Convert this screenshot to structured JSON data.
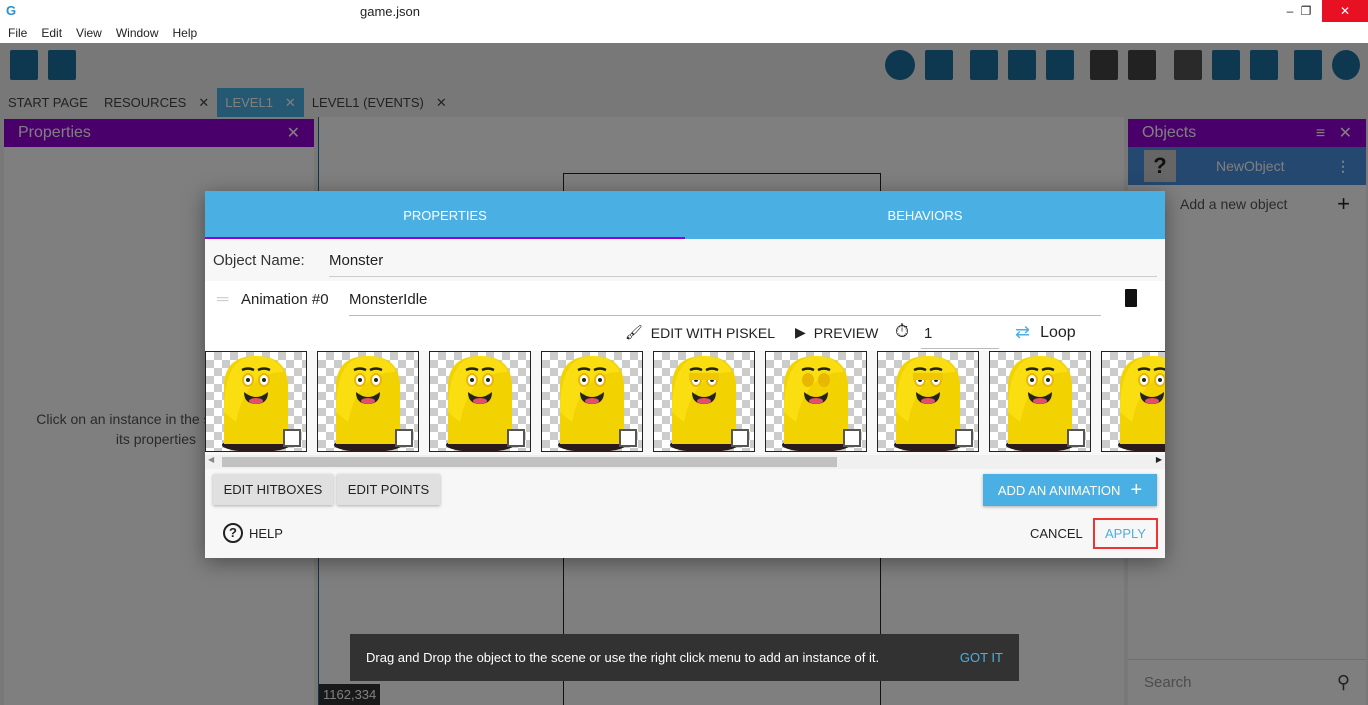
{
  "window": {
    "title": "game.json",
    "min": "–",
    "max": "❐",
    "close": "✕"
  },
  "menu": [
    "File",
    "Edit",
    "View",
    "Window",
    "Help"
  ],
  "tabs": [
    {
      "label": "START PAGE"
    },
    {
      "label": "RESOURCES",
      "close": "✕"
    },
    {
      "label": "LEVEL1",
      "close": "✕",
      "active": true
    },
    {
      "label": "LEVEL1 (EVENTS)",
      "close": "✕"
    }
  ],
  "properties_panel": {
    "title": "Properties",
    "close": "✕",
    "hint_line1": "Click on an instance in the scene to display",
    "hint_line2": "its properties"
  },
  "objects_panel": {
    "title": "Objects",
    "close": "✕",
    "items": [
      {
        "name": "NewObject",
        "icon": "question-mark-icon"
      }
    ],
    "add_label": "Add a new object",
    "add_icon": "+",
    "search_placeholder": "Search"
  },
  "scene": {
    "coordinates": "1162,334"
  },
  "dialog": {
    "tabs": [
      "PROPERTIES",
      "BEHAVIORS"
    ],
    "active_tab": "PROPERTIES",
    "object_name_label": "Object Name:",
    "object_name": "Monster",
    "animation_label": "Animation #0",
    "animation_name": "MonsterIdle",
    "edit_piskel": "EDIT WITH PISKEL",
    "preview": "PREVIEW",
    "timer_value": "1",
    "loop": "Loop",
    "frames": [
      "open",
      "open",
      "open",
      "open",
      "half",
      "closed",
      "half",
      "open",
      "open"
    ],
    "edit_hitboxes": "EDIT HITBOXES",
    "edit_points": "EDIT POINTS",
    "add_animation": "ADD AN ANIMATION",
    "help": "HELP",
    "cancel": "CANCEL",
    "apply": "APPLY",
    "accent": "#4ab0e4",
    "ink": "#9400d6"
  },
  "snackbar": {
    "message": "Drag and Drop the object to the scene or use the right click menu to add an instance of it.",
    "action": "GOT IT"
  }
}
